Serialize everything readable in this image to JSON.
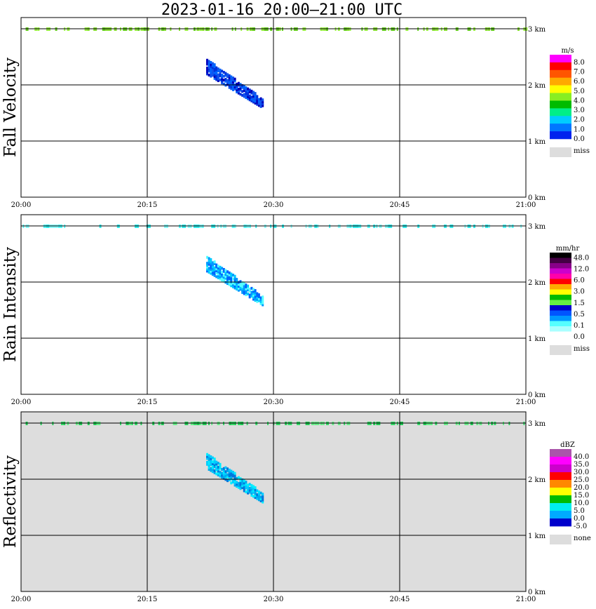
{
  "title": "2023-01-16  20:00–21:00 UTC",
  "chart_data": [
    {
      "type": "heatmap",
      "ylabel": "Fall Velocity",
      "x_ticks": [
        "20:00",
        "20:15",
        "20:30",
        "20:45",
        "21:00"
      ],
      "y_ticks": [
        "0 km",
        "1 km",
        "2 km",
        "3 km"
      ],
      "xlim_minutes": [
        0,
        60
      ],
      "ylim_km": [
        0,
        3.2
      ],
      "grid": true,
      "background": "#ffffff",
      "legend": {
        "unit": "m/s",
        "colors": [
          "#0022ee",
          "#0077ff",
          "#00ccff",
          "#00ee88",
          "#00bb00",
          "#88ee22",
          "#ffff00",
          "#ffaa00",
          "#ff5500",
          "#ff0000",
          "#ff00ff"
        ],
        "labels": [
          "0.0",
          "1.0",
          "2.0",
          "3.0",
          "4.0",
          "5.0",
          "6.0",
          "7.0",
          "8.0"
        ],
        "missing_label": "miss",
        "missing_color": "#dddddd"
      },
      "echo": {
        "strip_colors": [
          "#88dd33",
          "#99ee44",
          "#66cc22"
        ],
        "main_colors": [
          "#0066ff",
          "#1155ee",
          "#0033dd",
          "#0000bb"
        ]
      }
    },
    {
      "type": "heatmap",
      "ylabel": "Rain Intensity",
      "x_ticks": [
        "20:00",
        "20:15",
        "20:30",
        "20:45",
        "21:00"
      ],
      "y_ticks": [
        "0 km",
        "1 km",
        "2 km",
        "3 km"
      ],
      "xlim_minutes": [
        0,
        60
      ],
      "ylim_km": [
        0,
        3.2
      ],
      "grid": true,
      "background": "#ffffff",
      "legend": {
        "unit": "mm/hr",
        "colors": [
          "#ffffff",
          "#aaffff",
          "#55ffff",
          "#0099ff",
          "#0055ff",
          "#0000cc",
          "#66ee44",
          "#00bb00",
          "#ffff00",
          "#ffaa00",
          "#ff0000",
          "#ff00aa",
          "#cc00cc",
          "#880088",
          "#440044",
          "#000000"
        ],
        "labels": [
          "0.0",
          "0.1",
          "0.5",
          "1.5",
          "3.0",
          "6.0",
          "12.0",
          "48.0"
        ],
        "missing_label": "miss",
        "missing_color": "#dddddd"
      },
      "echo": {
        "strip_colors": [
          "#55ffff",
          "#88ffff",
          "#33eeee"
        ],
        "main_colors": [
          "#55ffff",
          "#00ccff",
          "#0099ff",
          "#0066ff"
        ]
      }
    },
    {
      "type": "heatmap",
      "ylabel": "Reflectivity",
      "x_ticks": [
        "20:00",
        "20:15",
        "20:30",
        "20:45",
        "21:00"
      ],
      "y_ticks": [
        "0 km",
        "1 km",
        "2 km",
        "3 km"
      ],
      "xlim_minutes": [
        0,
        60
      ],
      "ylim_km": [
        0,
        3.2
      ],
      "grid": true,
      "background": "#dddddd",
      "legend": {
        "unit": "dBZ",
        "colors": [
          "#0000cc",
          "#00aaff",
          "#00eeee",
          "#00bb00",
          "#ffff00",
          "#ff8800",
          "#ff0000",
          "#cc00cc",
          "#ff00ff",
          "#aa55aa"
        ],
        "labels": [
          "-5.0",
          "0.0",
          "5.0",
          "10.0",
          "15.0",
          "20.0",
          "25.0",
          "30.0",
          "35.0",
          "40.0"
        ],
        "missing_label": "none",
        "missing_color": "#dddddd"
      },
      "echo": {
        "strip_colors": [
          "#33dd66",
          "#22cc55",
          "#66ee88"
        ],
        "main_colors": [
          "#00eeff",
          "#00ccff",
          "#00aaee",
          "#0077dd"
        ]
      }
    }
  ]
}
